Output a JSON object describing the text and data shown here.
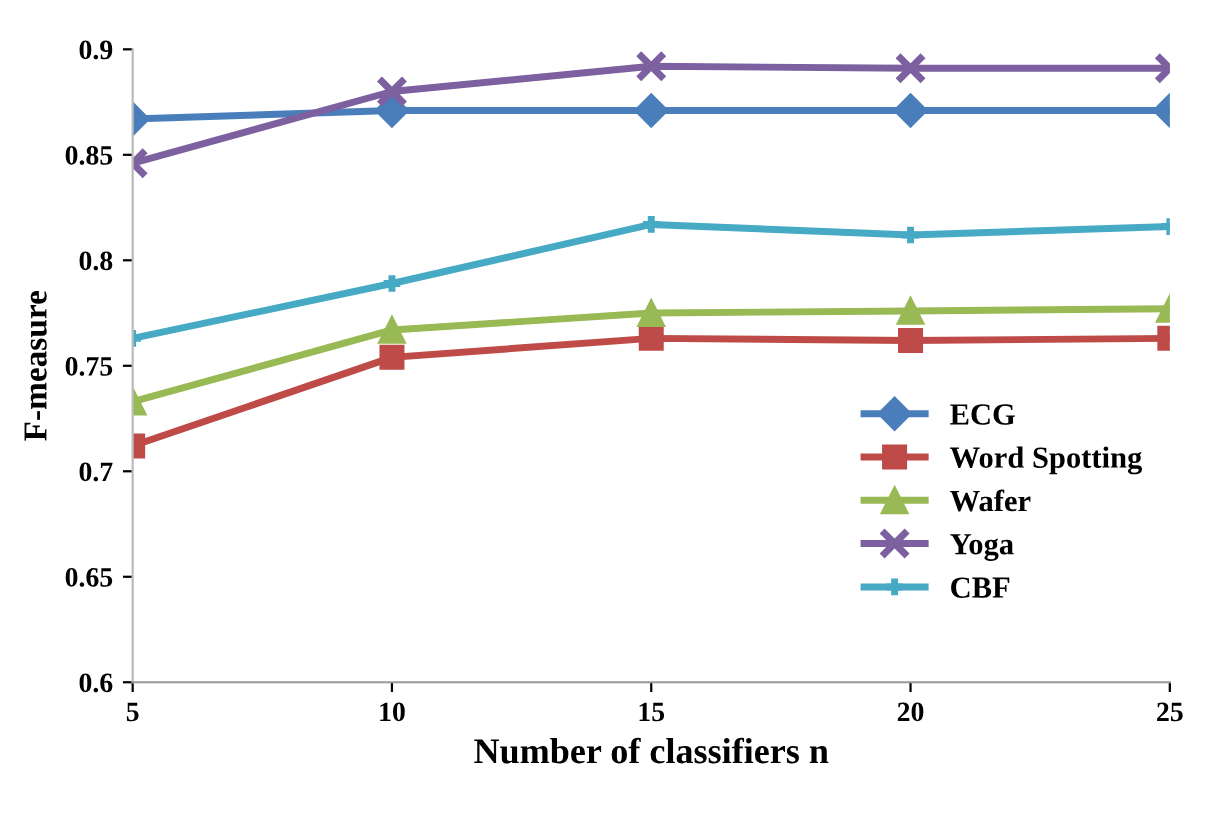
{
  "chart_data": {
    "type": "line",
    "xlabel": "Number of classifiers n",
    "ylabel": "F-measure",
    "x": [
      5,
      10,
      15,
      20,
      25
    ],
    "xlim": [
      5,
      25
    ],
    "xticks": [
      5,
      10,
      15,
      20,
      25
    ],
    "ylim": [
      0.6,
      0.9
    ],
    "yticks": [
      {
        "value": 0.6,
        "label": "0.6"
      },
      {
        "value": 0.65,
        "label": "0.65"
      },
      {
        "value": 0.7,
        "label": "0.7"
      },
      {
        "value": 0.75,
        "label": "0.75"
      },
      {
        "value": 0.8,
        "label": "0.8"
      },
      {
        "value": 0.85,
        "label": "0.85"
      },
      {
        "value": 0.9,
        "label": "0.9"
      }
    ],
    "grid": false,
    "legend": "bottom right",
    "line_style": "solid",
    "series": [
      {
        "name": "ECG",
        "color": "#4a7ebb",
        "marker": "diamond",
        "values": [
          0.867,
          0.871,
          0.871,
          0.871,
          0.871
        ]
      },
      {
        "name": "Word Spotting",
        "color": "#be4b48",
        "marker": "square",
        "values": [
          0.712,
          0.754,
          0.763,
          0.762,
          0.763
        ]
      },
      {
        "name": "Wafer",
        "color": "#98b954",
        "marker": "triangle",
        "values": [
          0.733,
          0.767,
          0.775,
          0.776,
          0.777
        ]
      },
      {
        "name": "Yoga",
        "color": "#7d60a0",
        "marker": "cross",
        "values": [
          0.846,
          0.88,
          0.892,
          0.891,
          0.891
        ]
      },
      {
        "name": "CBF",
        "color": "#46aac5",
        "marker": "plus",
        "values": [
          0.763,
          0.789,
          0.817,
          0.812,
          0.816
        ]
      }
    ]
  }
}
